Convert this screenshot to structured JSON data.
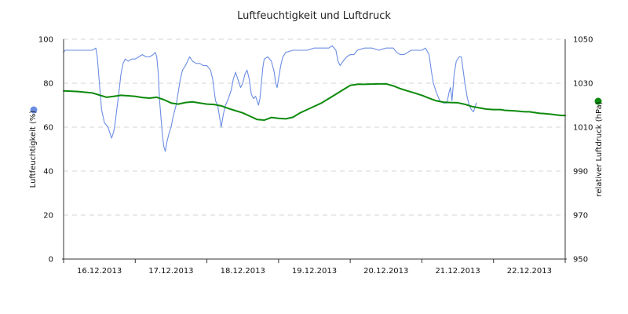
{
  "chart_data": {
    "type": "line",
    "title": "Luftfeuchtigkeit und Luftdruck",
    "grid": true,
    "legend": "side-dots",
    "x": {
      "ticks": [
        "16.12.2013",
        "17.12.2013",
        "18.12.2013",
        "19.12.2013",
        "20.12.2013",
        "21.12.2013",
        "22.12.2013"
      ],
      "range_days": [
        0,
        7
      ]
    },
    "y_left": {
      "label": "Luftfeuchtigkeit (%)",
      "ticks": [
        "0",
        "20",
        "40",
        "60",
        "80",
        "100"
      ],
      "range": [
        0,
        100
      ]
    },
    "y_right": {
      "label": "relativer Luftdruck (hPa)",
      "ticks": [
        "950",
        "970",
        "990",
        "1010",
        "1030",
        "1050"
      ],
      "range": [
        950,
        1050
      ]
    },
    "series": [
      {
        "name": "Luftfeuchtigkeit (%)",
        "axis": "left",
        "color": "#6b8de3",
        "points": [
          [
            0.0,
            94
          ],
          [
            0.02,
            95
          ],
          [
            0.1,
            95
          ],
          [
            0.2,
            95
          ],
          [
            0.3,
            95
          ],
          [
            0.4,
            95
          ],
          [
            0.45,
            96
          ],
          [
            0.47,
            92
          ],
          [
            0.5,
            80
          ],
          [
            0.53,
            68
          ],
          [
            0.57,
            62
          ],
          [
            0.62,
            60
          ],
          [
            0.65,
            57
          ],
          [
            0.67,
            55
          ],
          [
            0.7,
            58
          ],
          [
            0.72,
            62
          ],
          [
            0.75,
            70
          ],
          [
            0.78,
            78
          ],
          [
            0.8,
            84
          ],
          [
            0.83,
            89
          ],
          [
            0.86,
            91
          ],
          [
            0.9,
            90
          ],
          [
            0.95,
            91
          ],
          [
            1.0,
            91
          ],
          [
            1.05,
            92
          ],
          [
            1.1,
            93
          ],
          [
            1.15,
            92
          ],
          [
            1.2,
            92
          ],
          [
            1.25,
            93
          ],
          [
            1.28,
            94
          ],
          [
            1.3,
            92
          ],
          [
            1.32,
            85
          ],
          [
            1.34,
            72
          ],
          [
            1.36,
            64
          ],
          [
            1.38,
            56
          ],
          [
            1.4,
            51
          ],
          [
            1.42,
            49
          ],
          [
            1.44,
            53
          ],
          [
            1.47,
            57
          ],
          [
            1.5,
            60
          ],
          [
            1.53,
            65
          ],
          [
            1.57,
            70
          ],
          [
            1.6,
            76
          ],
          [
            1.63,
            82
          ],
          [
            1.66,
            86
          ],
          [
            1.7,
            88
          ],
          [
            1.73,
            90
          ],
          [
            1.76,
            92
          ],
          [
            1.8,
            90
          ],
          [
            1.85,
            89
          ],
          [
            1.9,
            89
          ],
          [
            1.95,
            88
          ],
          [
            2.0,
            88
          ],
          [
            2.05,
            86
          ],
          [
            2.08,
            82
          ],
          [
            2.1,
            77
          ],
          [
            2.12,
            72
          ],
          [
            2.15,
            70
          ],
          [
            2.18,
            64
          ],
          [
            2.2,
            60
          ],
          [
            2.23,
            66
          ],
          [
            2.26,
            70
          ],
          [
            2.3,
            73
          ],
          [
            2.34,
            77
          ],
          [
            2.37,
            82
          ],
          [
            2.4,
            85
          ],
          [
            2.43,
            82
          ],
          [
            2.47,
            78
          ],
          [
            2.5,
            80
          ],
          [
            2.53,
            84
          ],
          [
            2.56,
            86
          ],
          [
            2.59,
            82
          ],
          [
            2.62,
            75
          ],
          [
            2.65,
            73
          ],
          [
            2.68,
            74
          ],
          [
            2.72,
            70
          ],
          [
            2.74,
            73
          ],
          [
            2.76,
            80
          ],
          [
            2.78,
            87
          ],
          [
            2.8,
            91
          ],
          [
            2.85,
            92
          ],
          [
            2.9,
            90
          ],
          [
            2.94,
            85
          ],
          [
            2.96,
            80
          ],
          [
            2.98,
            78
          ],
          [
            3.0,
            82
          ],
          [
            3.03,
            88
          ],
          [
            3.06,
            92
          ],
          [
            3.1,
            94
          ],
          [
            3.2,
            95
          ],
          [
            3.3,
            95
          ],
          [
            3.4,
            95
          ],
          [
            3.5,
            96
          ],
          [
            3.6,
            96
          ],
          [
            3.7,
            96
          ],
          [
            3.75,
            97
          ],
          [
            3.8,
            95
          ],
          [
            3.83,
            90
          ],
          [
            3.86,
            88
          ],
          [
            3.9,
            90
          ],
          [
            3.95,
            92
          ],
          [
            4.0,
            93
          ],
          [
            4.05,
            93
          ],
          [
            4.1,
            95
          ],
          [
            4.2,
            96
          ],
          [
            4.3,
            96
          ],
          [
            4.4,
            95
          ],
          [
            4.5,
            96
          ],
          [
            4.6,
            96
          ],
          [
            4.65,
            94
          ],
          [
            4.7,
            93
          ],
          [
            4.75,
            93
          ],
          [
            4.8,
            94
          ],
          [
            4.85,
            95
          ],
          [
            4.9,
            95
          ],
          [
            5.0,
            95
          ],
          [
            5.05,
            96
          ],
          [
            5.1,
            93
          ],
          [
            5.13,
            86
          ],
          [
            5.16,
            80
          ],
          [
            5.2,
            76
          ],
          [
            5.25,
            72
          ],
          [
            5.3,
            71
          ],
          [
            5.35,
            71
          ],
          [
            5.38,
            76
          ],
          [
            5.4,
            78
          ],
          [
            5.42,
            72
          ],
          [
            5.45,
            84
          ],
          [
            5.48,
            90
          ],
          [
            5.52,
            92
          ],
          [
            5.55,
            92
          ],
          [
            5.58,
            85
          ],
          [
            5.6,
            80
          ],
          [
            5.63,
            74
          ],
          [
            5.66,
            70
          ],
          [
            5.69,
            68
          ],
          [
            5.72,
            67
          ],
          [
            5.74,
            69
          ],
          [
            5.76,
            71
          ]
        ]
      },
      {
        "name": "relativer Luftdruck (hPa)",
        "axis": "right",
        "color": "#0d8a0d",
        "points": [
          [
            0.0,
            1026.5
          ],
          [
            0.2,
            1026.2
          ],
          [
            0.4,
            1025.6
          ],
          [
            0.5,
            1024.6
          ],
          [
            0.6,
            1023.6
          ],
          [
            0.7,
            1024.0
          ],
          [
            0.8,
            1024.5
          ],
          [
            0.9,
            1024.3
          ],
          [
            1.0,
            1024.0
          ],
          [
            1.1,
            1023.5
          ],
          [
            1.2,
            1023.2
          ],
          [
            1.3,
            1023.6
          ],
          [
            1.4,
            1022.5
          ],
          [
            1.5,
            1021.0
          ],
          [
            1.6,
            1020.5
          ],
          [
            1.7,
            1021.2
          ],
          [
            1.8,
            1021.5
          ],
          [
            1.9,
            1021.0
          ],
          [
            2.0,
            1020.5
          ],
          [
            2.1,
            1020.3
          ],
          [
            2.2,
            1019.7
          ],
          [
            2.3,
            1018.5
          ],
          [
            2.4,
            1017.5
          ],
          [
            2.5,
            1016.5
          ],
          [
            2.6,
            1015.0
          ],
          [
            2.7,
            1013.5
          ],
          [
            2.8,
            1013.2
          ],
          [
            2.9,
            1014.4
          ],
          [
            3.0,
            1014.0
          ],
          [
            3.1,
            1013.8
          ],
          [
            3.2,
            1014.5
          ],
          [
            3.3,
            1016.5
          ],
          [
            3.4,
            1018.0
          ],
          [
            3.5,
            1019.5
          ],
          [
            3.6,
            1021.0
          ],
          [
            3.7,
            1023.0
          ],
          [
            3.8,
            1025.0
          ],
          [
            3.9,
            1027.0
          ],
          [
            4.0,
            1029.0
          ],
          [
            4.1,
            1029.5
          ],
          [
            4.2,
            1029.5
          ],
          [
            4.3,
            1029.6
          ],
          [
            4.4,
            1029.7
          ],
          [
            4.5,
            1029.7
          ],
          [
            4.6,
            1028.8
          ],
          [
            4.7,
            1027.5
          ],
          [
            4.8,
            1026.5
          ],
          [
            4.9,
            1025.5
          ],
          [
            5.0,
            1024.5
          ],
          [
            5.1,
            1023.2
          ],
          [
            5.2,
            1022.0
          ],
          [
            5.3,
            1021.4
          ],
          [
            5.4,
            1021.2
          ],
          [
            5.5,
            1021.1
          ],
          [
            5.6,
            1020.4
          ],
          [
            5.7,
            1019.4
          ],
          [
            5.8,
            1018.8
          ],
          [
            5.9,
            1018.2
          ],
          [
            6.0,
            1018.0
          ],
          [
            6.1,
            1018.0
          ],
          [
            6.15,
            1017.7
          ],
          [
            6.2,
            1017.6
          ],
          [
            6.3,
            1017.4
          ],
          [
            6.4,
            1017.1
          ],
          [
            6.45,
            1017.0
          ],
          [
            6.5,
            1017.0
          ],
          [
            6.6,
            1016.5
          ],
          [
            6.65,
            1016.3
          ],
          [
            6.7,
            1016.2
          ],
          [
            6.8,
            1015.9
          ],
          [
            6.9,
            1015.5
          ],
          [
            6.95,
            1015.3
          ],
          [
            7.0,
            1015.3
          ]
        ]
      }
    ]
  }
}
